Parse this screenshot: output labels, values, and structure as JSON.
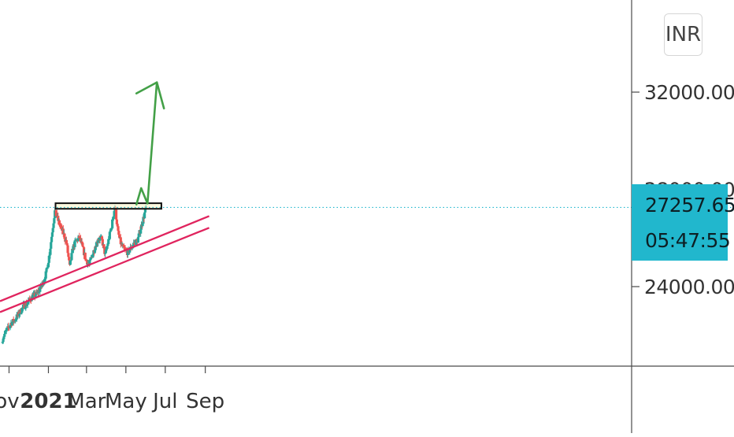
{
  "currency": "INR",
  "price_tag": {
    "last_price": "27257.65",
    "countdown": "05:47:55"
  },
  "chart_data": {
    "type": "candlestick",
    "title": "",
    "xlabel": "",
    "ylabel": "",
    "x_tick_labels": [
      "ov",
      "2021",
      "Mar",
      "May",
      "Jul",
      "Sep"
    ],
    "y_tick_labels": [
      "32000.00",
      "28000.00",
      "24000.00"
    ],
    "ylim": [
      21600,
      35000
    ],
    "last_price": 27257.65,
    "resistance_zone": {
      "from": "2021-01-12",
      "to": "2021-06-25",
      "low": 27200,
      "high": 27430
    },
    "rising_channel": {
      "upper": {
        "start": [
          "2020-10-18",
          23400
        ],
        "end": [
          "2021-09-07",
          26900
        ]
      },
      "lower": {
        "start": [
          "2020-10-18",
          22950
        ],
        "end": [
          "2021-09-07",
          26420
        ]
      }
    },
    "arrow_projection": {
      "from": [
        "2021-06-01",
        27400
      ],
      "to": [
        "2021-06-18",
        32400
      ]
    },
    "series": [
      {
        "dates": [
          "2020-10-22",
          "2020-10-27",
          "2020-11-01",
          "2020-11-05",
          "2020-11-10",
          "2020-11-15",
          "2020-11-20",
          "2020-11-25",
          "2020-11-30",
          "2020-12-05",
          "2020-12-10",
          "2020-12-15",
          "2020-12-20",
          "2020-12-25",
          "2020-12-30",
          "2021-01-04",
          "2021-01-08",
          "2021-01-12",
          "2021-01-16",
          "2021-01-20",
          "2021-01-25",
          "2021-01-30",
          "2021-02-04",
          "2021-02-09",
          "2021-02-14",
          "2021-02-19",
          "2021-02-24",
          "2021-03-01",
          "2021-03-06",
          "2021-03-11",
          "2021-03-16",
          "2021-03-21",
          "2021-03-26",
          "2021-03-31",
          "2021-04-05",
          "2021-04-10",
          "2021-04-15",
          "2021-04-20",
          "2021-04-25",
          "2021-04-30",
          "2021-05-05",
          "2021-05-10",
          "2021-05-15",
          "2021-05-20",
          "2021-05-25",
          "2021-05-30",
          "2021-06-02"
        ],
        "close": [
          21800,
          22100,
          22300,
          22500,
          22600,
          22800,
          23000,
          23200,
          23300,
          23500,
          23600,
          23700,
          23900,
          24200,
          24600,
          25400,
          26300,
          27100,
          26800,
          26500,
          26200,
          25800,
          24800,
          25600,
          25900,
          26000,
          25600,
          25100,
          24900,
          25300,
          25700,
          26000,
          25900,
          25300,
          25900,
          26500,
          27300,
          26200,
          25700,
          25500,
          25400,
          25600,
          25800,
          25900,
          26400,
          26900,
          27260
        ]
      }
    ]
  }
}
